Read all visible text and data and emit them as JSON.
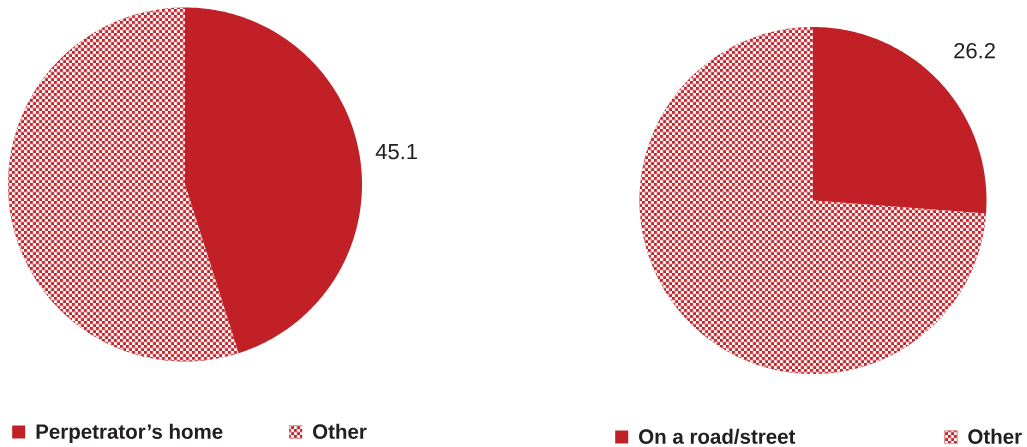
{
  "chart_data": [
    {
      "type": "pie",
      "categories": [
        "Perpetrator’s home",
        "Other"
      ],
      "values": [
        45.1,
        54.9
      ],
      "colors": [
        "#c12026",
        "#c12026"
      ],
      "value_labels": [
        "45.1",
        null
      ],
      "legend": "bottom"
    },
    {
      "type": "pie",
      "categories": [
        "On a road/street",
        "Other"
      ],
      "values": [
        26.2,
        73.8
      ],
      "colors": [
        "#c12026",
        "#c12026"
      ],
      "value_labels": [
        "26.2",
        null
      ],
      "legend": "bottom"
    }
  ]
}
